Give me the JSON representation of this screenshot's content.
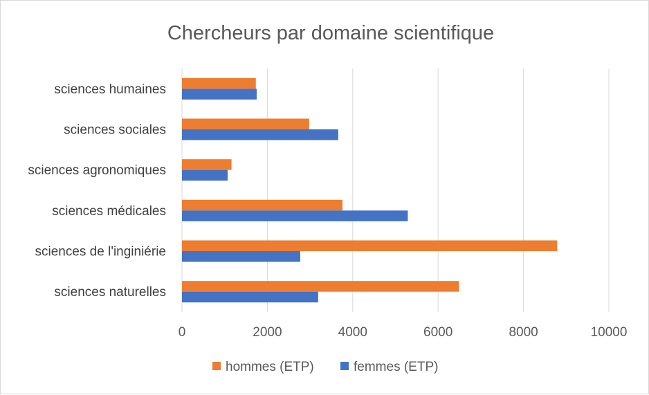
{
  "chart_data": {
    "type": "bar",
    "orientation": "horizontal",
    "title": "Chercheurs par domaine scientifique",
    "categories": [
      "sciences humaines",
      "sciences sociales",
      "sciences agronomiques",
      "sciences médicales",
      "sciences de l'inginiérie",
      "sciences naturelles"
    ],
    "series": [
      {
        "name": "hommes (ETP)",
        "color": "#ED7D31",
        "values": [
          1730,
          2980,
          1160,
          3760,
          8790,
          6490
        ]
      },
      {
        "name": "femmes (ETP)",
        "color": "#4472C4",
        "values": [
          1750,
          3660,
          1070,
          5290,
          2770,
          3190
        ]
      }
    ],
    "xlim": [
      0,
      10000
    ],
    "xticks": [
      0,
      2000,
      4000,
      6000,
      8000,
      10000
    ],
    "grid": true,
    "legend": "bottom"
  }
}
